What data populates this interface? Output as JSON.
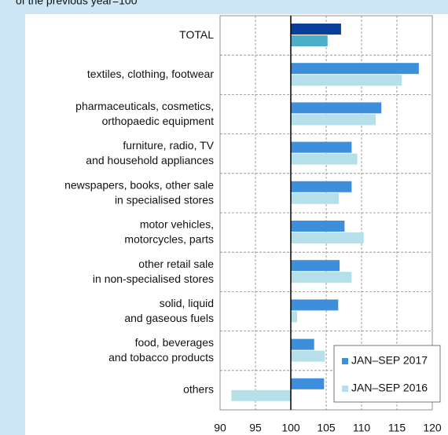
{
  "chart_data": {
    "type": "hbar",
    "subtitle": "of the previous year=100",
    "categories": [
      "TOTAL",
      "textiles, clothing, footwear",
      "pharmaceuticals, cosmetics,\northopaedic equipment",
      "furniture, radio, TV\nand household appliances",
      "newspapers, books, other sale\nin specialised stores",
      "motor vehicles,\nmotorcycles, parts",
      "other retail sale\nin non-specialised stores",
      "solid, liquid\nand gaseous fuels",
      "food, beverages\nand tobacco products",
      "others"
    ],
    "series": [
      {
        "name": "JAN–SEP 2017",
        "color": "#3d8fdc",
        "highlight_color": "#0b3d9c",
        "values": [
          107.1,
          118.1,
          112.8,
          108.6,
          108.6,
          107.6,
          106.9,
          106.7,
          103.3,
          104.7
        ]
      },
      {
        "name": "JAN–SEP 2016",
        "color": "#b5e0ea",
        "highlight_color": "#4bafc9",
        "values": [
          105.2,
          115.7,
          112.0,
          109.4,
          106.8,
          110.3,
          108.6,
          100.9,
          104.8,
          91.6
        ]
      }
    ],
    "xlim": [
      90,
      120
    ],
    "xticks": [
      90,
      95,
      100,
      105,
      110,
      115,
      120
    ],
    "baseline": 100,
    "grid": true,
    "legend": "lower right"
  }
}
